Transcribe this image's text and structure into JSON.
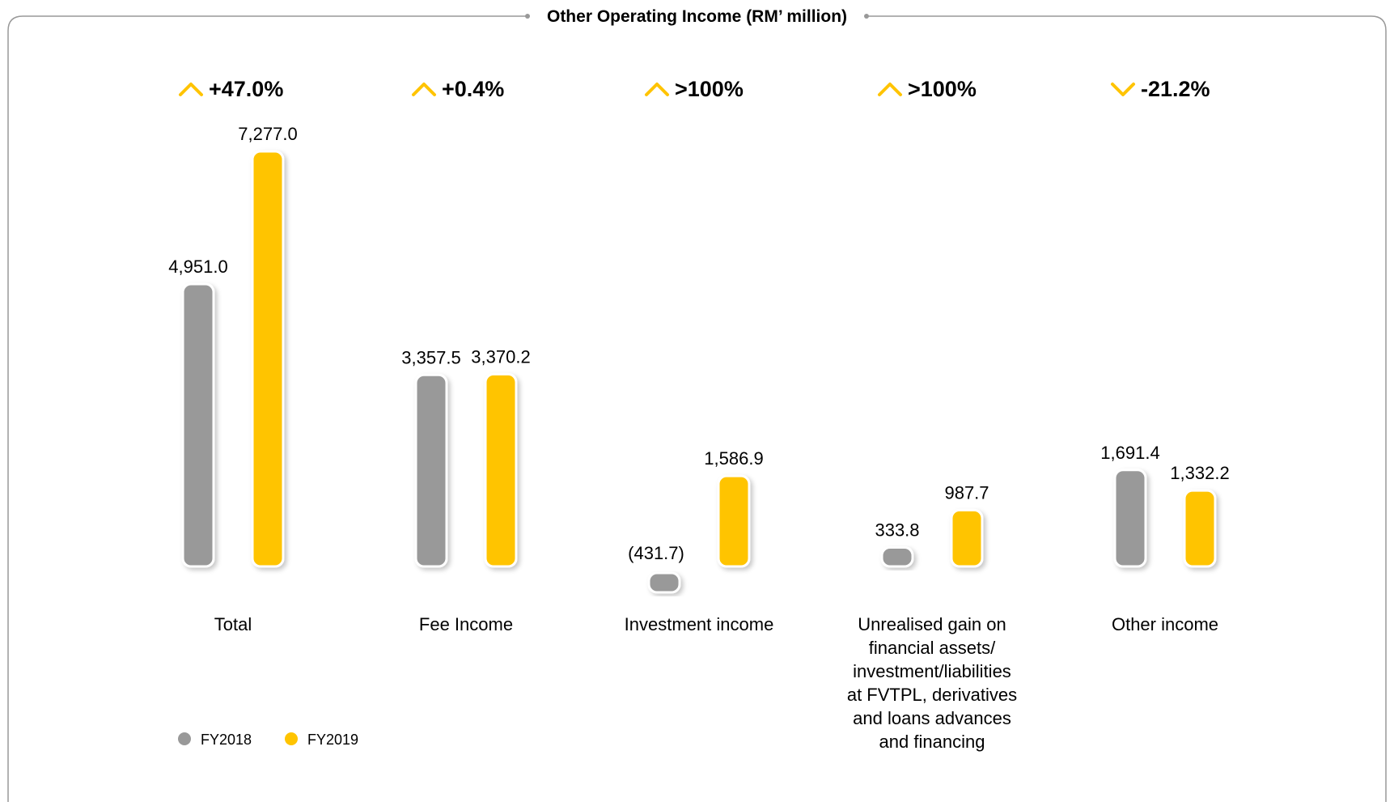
{
  "chart_data": {
    "type": "bar",
    "title": "Other Operating Income (RM’ million)",
    "categories": [
      "Total",
      "Fee Income",
      "Investment income",
      "Unrealised gain on financial assets/ investment/liabilities at FVTPL, derivatives and loans advances and financing",
      "Other income"
    ],
    "category_label_lines": [
      [
        "Total"
      ],
      [
        "Fee Income"
      ],
      [
        "Investment income"
      ],
      [
        "Unrealised gain on",
        "financial assets/",
        "investment/liabilities",
        "at FVTPL, derivatives",
        "and loans advances",
        "and financing"
      ],
      [
        "Other income"
      ]
    ],
    "series": [
      {
        "name": "FY2018",
        "color": "#999999",
        "values": [
          4951.0,
          3357.5,
          -431.7,
          333.8,
          1691.4
        ],
        "labels": [
          "4,951.0",
          "3,357.5",
          "(431.7)",
          "333.8",
          "1,691.4"
        ]
      },
      {
        "name": "FY2019",
        "color": "#FFC400",
        "values": [
          7277.0,
          3370.2,
          1586.9,
          987.7,
          1332.2
        ],
        "labels": [
          "7,277.0",
          "3,370.2",
          "1,586.9",
          "987.7",
          "1,332.2"
        ]
      }
    ],
    "changes": [
      {
        "text": "+47.0%",
        "direction": "up"
      },
      {
        "text": "+0.4%",
        "direction": "up"
      },
      {
        "text": ">100%",
        "direction": "up"
      },
      {
        "text": ">100%",
        "direction": "up"
      },
      {
        "text": "-21.2%",
        "direction": "down"
      }
    ],
    "ylim": [
      -431.7,
      7277.0
    ],
    "grid": false,
    "legend_position": "bottom-left",
    "frame_color": "#999999",
    "arrow_color": "#FFC400"
  }
}
